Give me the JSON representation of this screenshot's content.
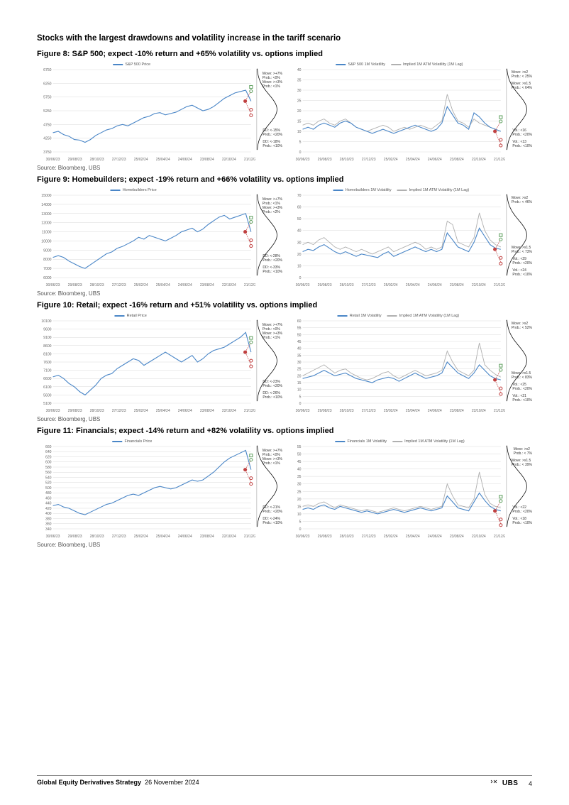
{
  "section_title": "Stocks with the largest drawdowns and volatility increase in the tariff scenario",
  "x_dates": [
    "30/06/23",
    "29/08/23",
    "28/10/23",
    "27/12/23",
    "25/02/24",
    "25/04/24",
    "24/06/24",
    "23/08/24",
    "22/10/24",
    "21/12/24"
  ],
  "figures": [
    {
      "title": "Figure 8: S&P 500; expect -10% return and +65% volatility vs. options implied",
      "left": {
        "legend_label": "S&P 500 Price",
        "ylim": [
          3750,
          6750
        ],
        "ystep": 500,
        "color": "#4a86c7",
        "series": [
          4450,
          4500,
          4380,
          4320,
          4200,
          4180,
          4100,
          4200,
          4350,
          4450,
          4550,
          4600,
          4700,
          4750,
          4700,
          4800,
          4900,
          5000,
          5050,
          5150,
          5180,
          5100,
          5150,
          5200,
          5300,
          5400,
          5450,
          5350,
          5250,
          5300,
          5400,
          5550,
          5700,
          5800,
          5900,
          5950,
          6000,
          5600
        ],
        "annots": [
          {
            "t1": "Move: >+7%",
            "t2": "Prob.: <0%",
            "y": 16
          },
          {
            "t1": "Move: >+3%",
            "t2": "Prob.: <1%",
            "y": 28
          },
          {
            "t1": "DD: <-15%",
            "t2": "Prob.: <20%",
            "y": 96
          },
          {
            "t1": "DD: <-18%",
            "t2": "Prob.: <10%",
            "y": 112
          }
        ]
      },
      "right": {
        "legend1": "S&P 500 1M Volatility",
        "legend2": "Implied 1M ATM Volatility (1M Lag)",
        "ylim": [
          0,
          40
        ],
        "ystep": 5,
        "series_blue": [
          11,
          12,
          11,
          13,
          14,
          13,
          12,
          14,
          15,
          14,
          12,
          11,
          10,
          9,
          10,
          11,
          10,
          9,
          10,
          11,
          12,
          13,
          12,
          11,
          10,
          11,
          14,
          22,
          18,
          14,
          13,
          11,
          19,
          17,
          14,
          12,
          11,
          10
        ],
        "series_gray": [
          13,
          14,
          13,
          15,
          16,
          14,
          13,
          15,
          16,
          14,
          12,
          11,
          10,
          11,
          12,
          13,
          12,
          10,
          11,
          12,
          11,
          12,
          13,
          12,
          11,
          13,
          15,
          28,
          20,
          15,
          14,
          12,
          16,
          14,
          13,
          12,
          11,
          10
        ],
        "annots": [
          {
            "t1": "Move: >x2",
            "t2": "Prob.: < 25%",
            "y": 14
          },
          {
            "t1": "Move: >x1.5",
            "t2": "Prob.: < 64%",
            "y": 30
          },
          {
            "t1": "Vol.: <16",
            "t2": "Prob.: <20%",
            "y": 96
          },
          {
            "t1": "Vol.: <13",
            "t2": "Prob.: <10%",
            "y": 112
          }
        ]
      }
    },
    {
      "title": "Figure 9: Homebuilders; expect -19% return and +66% volatility vs. options implied",
      "left": {
        "legend_label": "Homebuilders Price",
        "ylim": [
          6000,
          15000
        ],
        "ystep": 1000,
        "color": "#4a86c7",
        "series": [
          8200,
          8400,
          8200,
          7800,
          7500,
          7200,
          7000,
          7400,
          7800,
          8200,
          8600,
          8800,
          9200,
          9400,
          9700,
          10000,
          10400,
          10200,
          10600,
          10400,
          10200,
          10000,
          10300,
          10600,
          11000,
          11200,
          11400,
          11000,
          11300,
          11800,
          12200,
          12600,
          12800,
          12400,
          12600,
          12800,
          13000,
          11000
        ],
        "annots": [
          {
            "t1": "Move: >+7%",
            "t2": "Prob.: <1%",
            "y": 16
          },
          {
            "t1": "Move: >+3%",
            "t2": "Prob.: <2%",
            "y": 28
          },
          {
            "t1": "DD: <-28%",
            "t2": "Prob.: <20%",
            "y": 96
          },
          {
            "t1": "DD: <-33%",
            "t2": "Prob.: <10%",
            "y": 112
          }
        ]
      },
      "right": {
        "legend1": "Homebuilders 1M Volatility",
        "legend2": "Implied 1M ATM Volatility (1M Lag)",
        "ylim": [
          0,
          70
        ],
        "ystep": 10,
        "series_blue": [
          22,
          24,
          23,
          26,
          28,
          25,
          22,
          20,
          22,
          20,
          18,
          20,
          19,
          18,
          17,
          20,
          22,
          18,
          20,
          22,
          24,
          26,
          24,
          22,
          24,
          22,
          24,
          38,
          32,
          26,
          24,
          22,
          30,
          42,
          35,
          28,
          25,
          24
        ],
        "series_gray": [
          28,
          30,
          28,
          32,
          34,
          30,
          26,
          24,
          26,
          24,
          22,
          24,
          22,
          20,
          22,
          24,
          26,
          22,
          24,
          26,
          28,
          30,
          28,
          24,
          26,
          24,
          26,
          48,
          45,
          30,
          28,
          26,
          34,
          55,
          40,
          32,
          28,
          26
        ],
        "annots": [
          {
            "t1": "Move: >x2",
            "t2": "Prob.: < 46%",
            "y": 14
          },
          {
            "t1": "Move: >x1.5",
            "t2": "Prob.: < 73%",
            "y": 84
          },
          {
            "t1": "Vol.: <29",
            "t2": "Prob.: <20%",
            "y": 100
          },
          {
            "t1": "Vol.: <24",
            "t2": "Prob.: <10%",
            "y": 116
          }
        ]
      }
    },
    {
      "title": "Figure 10: Retail; expect -16% return and +51% volatility vs. options implied",
      "left": {
        "legend_label": "Retail Price",
        "ylim": [
          5100,
          10100
        ],
        "ystep": 500,
        "color": "#4a86c7",
        "series": [
          6700,
          6800,
          6600,
          6300,
          6100,
          5800,
          5600,
          5900,
          6200,
          6600,
          6800,
          6900,
          7200,
          7400,
          7600,
          7800,
          7700,
          7400,
          7600,
          7800,
          8000,
          8200,
          8000,
          7800,
          7600,
          7800,
          8000,
          7600,
          7800,
          8100,
          8300,
          8400,
          8500,
          8700,
          8900,
          9100,
          9400,
          8200
        ],
        "annots": [
          {
            "t1": "Move: >+7%",
            "t2": "Prob.: <0%",
            "y": 16
          },
          {
            "t1": "Move: >+3%",
            "t2": "Prob.: <1%",
            "y": 28
          },
          {
            "t1": "DD: <-23%",
            "t2": "Prob.: <20%",
            "y": 96
          },
          {
            "t1": "DD: <-26%",
            "t2": "Prob.: <10%",
            "y": 112
          }
        ]
      },
      "right": {
        "legend1": "Retail 1M Volatility",
        "legend2": "Implied 1M ATM Volatility (1M Lag)",
        "ylim": [
          0,
          60
        ],
        "ystep": 5,
        "series_blue": [
          18,
          19,
          20,
          22,
          24,
          22,
          20,
          21,
          22,
          20,
          18,
          17,
          16,
          15,
          17,
          18,
          19,
          18,
          16,
          18,
          20,
          22,
          20,
          18,
          19,
          20,
          22,
          30,
          26,
          22,
          20,
          18,
          22,
          28,
          24,
          20,
          18,
          17
        ],
        "series_gray": [
          20,
          22,
          24,
          26,
          28,
          25,
          22,
          24,
          25,
          22,
          20,
          18,
          17,
          18,
          20,
          22,
          23,
          20,
          18,
          20,
          22,
          24,
          22,
          20,
          21,
          22,
          24,
          38,
          30,
          24,
          22,
          20,
          24,
          44,
          28,
          24,
          21,
          19
        ],
        "annots": [
          {
            "t1": "Move: >x2",
            "t2": "Prob.: < 52%",
            "y": 14
          },
          {
            "t1": "Move: >x1.5",
            "t2": "Prob.: < 83%",
            "y": 84
          },
          {
            "t1": "Vol.: <25",
            "t2": "Prob.: <20%",
            "y": 100
          },
          {
            "t1": "Vol.: <21",
            "t2": "Prob.: <10%",
            "y": 116
          }
        ]
      }
    },
    {
      "title": "Figure 11: Financials; expect -14% return and +82% volatility vs. options implied",
      "left": {
        "legend_label": "Financials Price",
        "ylim": [
          340,
          660
        ],
        "ystep": 20,
        "color": "#4a86c7",
        "series": [
          430,
          435,
          425,
          420,
          410,
          400,
          395,
          405,
          415,
          425,
          435,
          440,
          450,
          460,
          470,
          475,
          470,
          480,
          490,
          500,
          505,
          500,
          495,
          500,
          510,
          520,
          530,
          525,
          530,
          545,
          560,
          580,
          600,
          615,
          625,
          635,
          645,
          570
        ],
        "annots": [
          {
            "t1": "Move: >+7%",
            "t2": "Prob.: <0%",
            "y": 16
          },
          {
            "t1": "Move: >+3%",
            "t2": "Prob.: <1%",
            "y": 28
          },
          {
            "t1": "DD: <-21%",
            "t2": "Prob.: <20%",
            "y": 96
          },
          {
            "t1": "DD: <-24%",
            "t2": "Prob.: <10%",
            "y": 112
          }
        ]
      },
      "right": {
        "legend1": "Financials 1M Volatility",
        "legend2": "Implied 1M ATM Volatility (1M Lag)",
        "ylim": [
          0,
          55
        ],
        "ystep": 5,
        "series_blue": [
          13,
          14,
          13,
          15,
          16,
          14,
          13,
          15,
          14,
          13,
          12,
          11,
          12,
          11,
          10,
          11,
          12,
          13,
          12,
          11,
          12,
          13,
          14,
          13,
          12,
          13,
          14,
          22,
          18,
          14,
          13,
          12,
          18,
          24,
          19,
          15,
          13,
          12
        ],
        "series_gray": [
          15,
          16,
          15,
          17,
          18,
          16,
          14,
          16,
          15,
          14,
          13,
          12,
          13,
          12,
          11,
          12,
          13,
          14,
          13,
          12,
          13,
          14,
          15,
          14,
          13,
          14,
          15,
          30,
          22,
          16,
          15,
          14,
          20,
          38,
          23,
          17,
          15,
          14
        ],
        "annots": [
          {
            "t1": "Move: >x2",
            "t2": "Prob.: < 7%",
            "y": 14
          },
          {
            "t1": "Move: >x1.5",
            "t2": "Prob.: < 39%",
            "y": 30
          },
          {
            "t1": "Vol.: <22",
            "t2": "Prob.: <20%",
            "y": 96
          },
          {
            "t1": "Vol.: <18",
            "t2": "Prob.: <10%",
            "y": 112
          }
        ]
      }
    }
  ],
  "source_text": "Source: Bloomberg, UBS",
  "footer": {
    "strategy": "Global Equity Derivatives Strategy",
    "date": "26 November 2024",
    "brand": "UBS",
    "page": "4"
  },
  "style": {
    "grid_color": "#d9d9d9",
    "axis_color": "#888",
    "tick_font": 5,
    "line_blue": "#4a86c7",
    "line_gray": "#b0b0b0",
    "dist_stroke": "#000",
    "marker_green": "#5fa05f",
    "marker_red": "#c04040"
  }
}
